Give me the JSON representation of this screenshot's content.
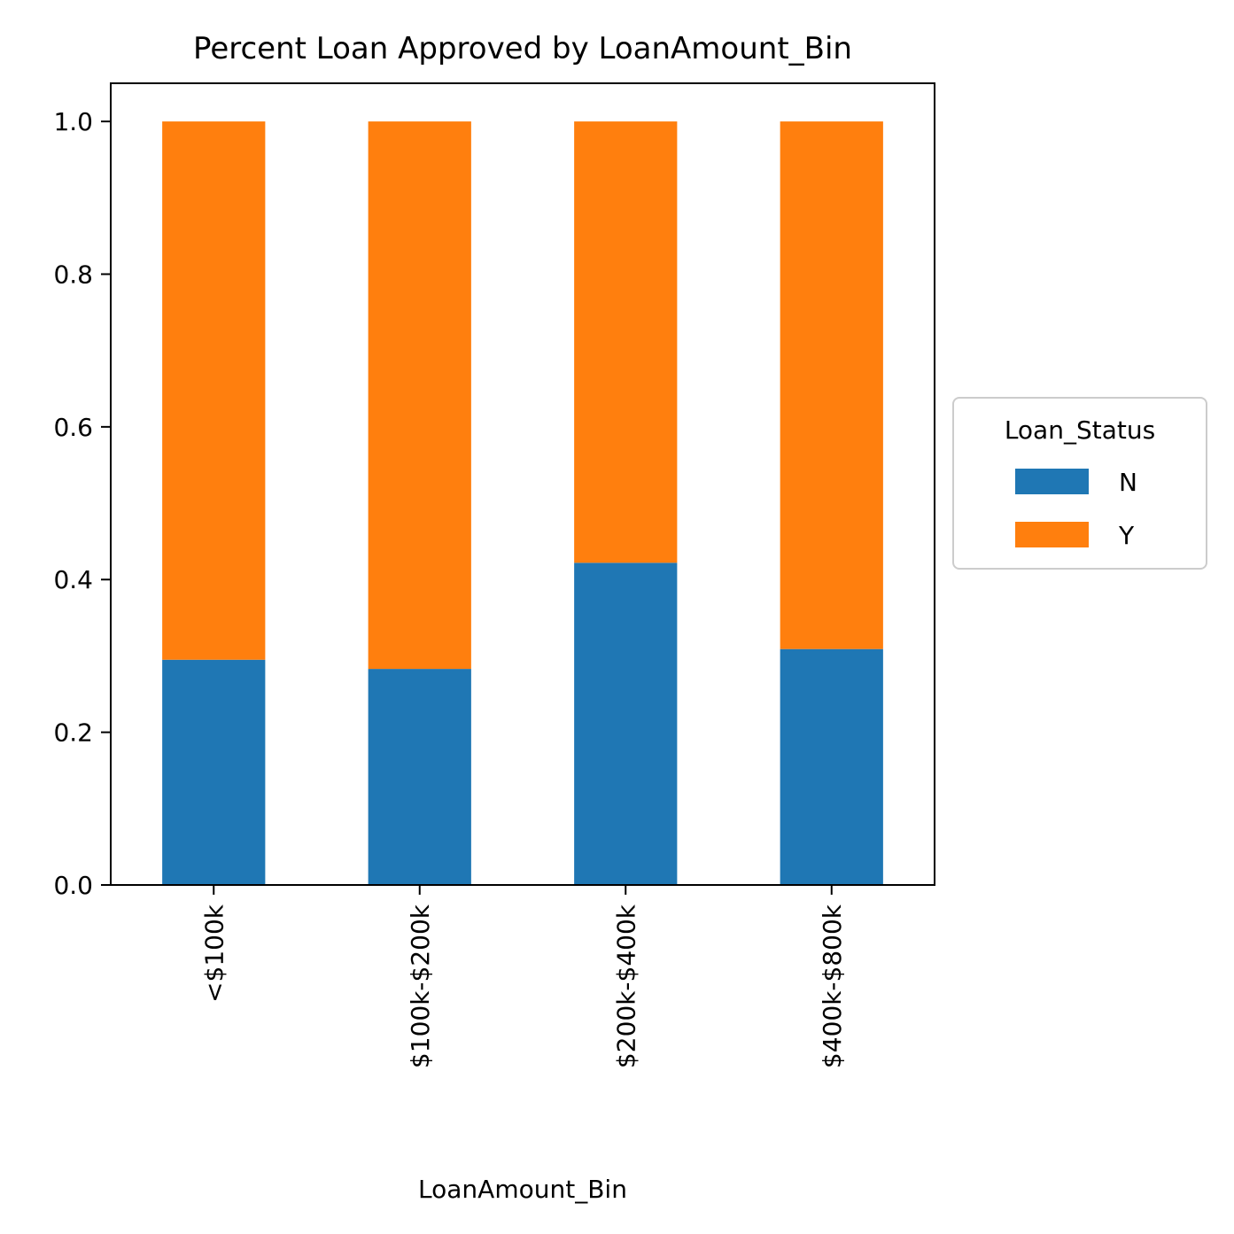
{
  "chart_data": {
    "type": "bar",
    "stacked": true,
    "title": "Percent Loan Approved by LoanAmount_Bin",
    "xlabel": "LoanAmount_Bin",
    "ylabel": "",
    "categories": [
      "<$100k",
      "$100k-$200k",
      "$200k-$400k",
      "$400k-$800k"
    ],
    "series": [
      {
        "name": "N",
        "color": "#1f77b4",
        "values": [
          0.295,
          0.283,
          0.422,
          0.309
        ]
      },
      {
        "name": "Y",
        "color": "#ff7f0e",
        "values": [
          0.705,
          0.717,
          0.578,
          0.691
        ]
      }
    ],
    "ylim": [
      0,
      1.05
    ],
    "yticks": [
      "0.0",
      "0.2",
      "0.4",
      "0.6",
      "0.8",
      "1.0"
    ],
    "grid": false,
    "legend": {
      "title": "Loan_Status",
      "placement": "center-right-outside"
    }
  }
}
